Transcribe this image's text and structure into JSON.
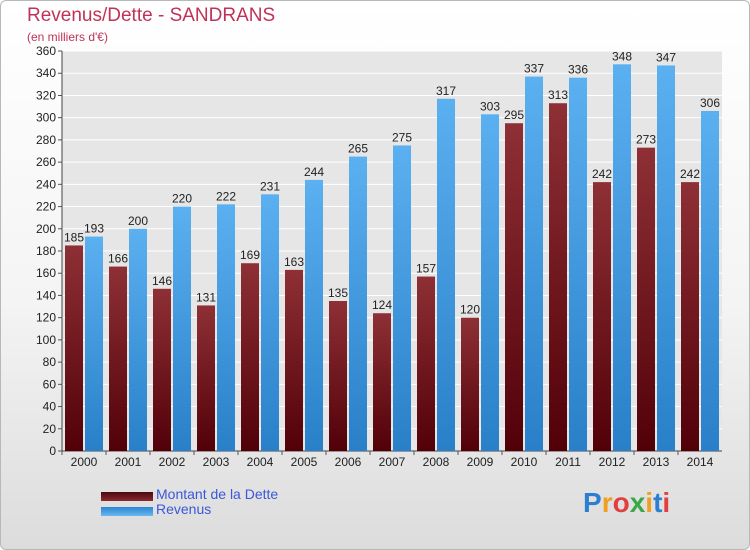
{
  "header": {
    "title": "Revenus/Dette - SANDRANS",
    "subtitle": "(en milliers d'€)"
  },
  "chart_data": {
    "type": "bar",
    "categories": [
      "2000",
      "2001",
      "2002",
      "2003",
      "2004",
      "2005",
      "2006",
      "2007",
      "2008",
      "2009",
      "2010",
      "2011",
      "2012",
      "2013",
      "2014"
    ],
    "series": [
      {
        "name": "Montant de la Dette",
        "color": "#7a1f24",
        "values": [
          185,
          166,
          146,
          131,
          169,
          163,
          135,
          124,
          157,
          120,
          295,
          313,
          242,
          273,
          242
        ]
      },
      {
        "name": "Revenus",
        "color": "#3d9be0",
        "values": [
          193,
          200,
          220,
          222,
          231,
          244,
          265,
          275,
          317,
          303,
          337,
          336,
          348,
          347,
          306
        ]
      }
    ],
    "ylim": [
      0,
      360
    ],
    "yticks": [
      0,
      20,
      40,
      60,
      80,
      100,
      120,
      140,
      160,
      180,
      200,
      220,
      240,
      260,
      280,
      300,
      320,
      340,
      360
    ],
    "grid": true,
    "legend_position": "bottom-left"
  },
  "legend": {
    "debt_label": "Montant de la Dette",
    "revenue_label": "Revenus"
  },
  "logo": {
    "letters": [
      "P",
      "r",
      "o",
      "x",
      "i",
      "t",
      "i"
    ],
    "colors": [
      "#2a7fd0",
      "#f0a020",
      "#e04040",
      "#3aa845",
      "#f0a020",
      "#2a7fd0",
      "#e04040"
    ]
  }
}
